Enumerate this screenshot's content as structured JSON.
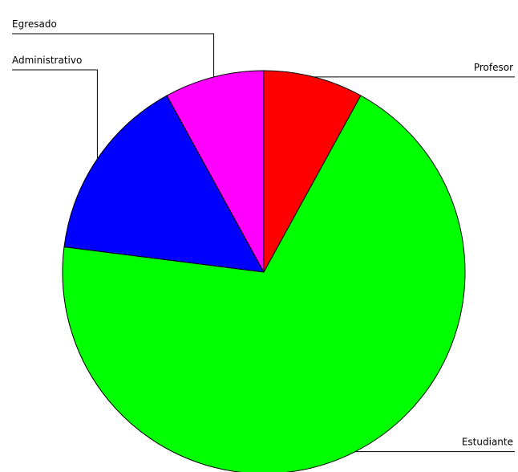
{
  "chart_data": {
    "type": "pie",
    "categories": [
      "Profesor",
      "Estudiante",
      "Administrativo",
      "Egresado"
    ],
    "values": [
      8,
      69,
      15,
      8
    ],
    "colors": [
      "#ff0000",
      "#00ff00",
      "#0000ff",
      "#ff00ff"
    ]
  }
}
